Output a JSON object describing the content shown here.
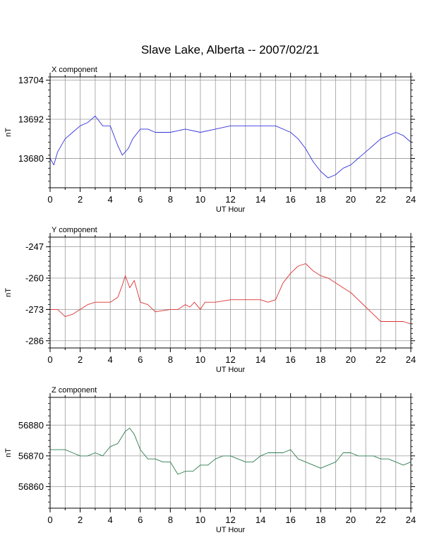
{
  "title": "Slave Lake, Alberta -- 2007/02/21",
  "chart_data": [
    {
      "type": "line",
      "panel_label": "X component",
      "xlabel": "UT Hour",
      "ylabel": "nT",
      "xlim": [
        0,
        24
      ],
      "ylim": [
        13671,
        13705
      ],
      "xticks": [
        0,
        2,
        4,
        6,
        8,
        10,
        12,
        14,
        16,
        18,
        20,
        22,
        24
      ],
      "yticks": [
        13668,
        13680,
        13692,
        13704
      ],
      "grid": true,
      "color": "#3333dd",
      "x": [
        0,
        0.25,
        0.5,
        1,
        1.5,
        2,
        2.5,
        3,
        3.5,
        4,
        4.5,
        4.8,
        5.2,
        5.5,
        6,
        6.5,
        7,
        8,
        9,
        10,
        11,
        12,
        13,
        14,
        15,
        16,
        16.5,
        17,
        17.5,
        18,
        18.5,
        19,
        19.5,
        20,
        20.5,
        21,
        21.5,
        22,
        22.5,
        23,
        23.5,
        24
      ],
      "y": [
        13680,
        13678,
        13682,
        13686,
        13688,
        13690,
        13691,
        13693,
        13690,
        13690,
        13684,
        13681,
        13683,
        13686,
        13689,
        13689,
        13688,
        13688,
        13689,
        13688,
        13689,
        13690,
        13690,
        13690,
        13690,
        13688,
        13686,
        13683,
        13679,
        13676,
        13674,
        13675,
        13677,
        13678,
        13680,
        13682,
        13684,
        13686,
        13687,
        13688,
        13687,
        13685
      ]
    },
    {
      "type": "line",
      "panel_label": "Y component",
      "xlabel": "UT Hour",
      "ylabel": "nT",
      "xlim": [
        0,
        24
      ],
      "ylim": [
        -289,
        -243
      ],
      "xticks": [
        0,
        2,
        4,
        6,
        8,
        10,
        12,
        14,
        16,
        18,
        20,
        22,
        24
      ],
      "yticks": [
        -247,
        -260,
        -273,
        -286
      ],
      "grid": true,
      "color": "#dd3333",
      "x": [
        0,
        0.5,
        1,
        1.5,
        2,
        2.5,
        3,
        3.5,
        4,
        4.5,
        4.8,
        5,
        5.3,
        5.6,
        6,
        6.5,
        7,
        8,
        8.5,
        9,
        9.3,
        9.6,
        10,
        10.3,
        11,
        12,
        13,
        14,
        14.5,
        15,
        15.5,
        16,
        16.5,
        17,
        17.5,
        18,
        18.5,
        19,
        19.5,
        20,
        20.5,
        21,
        21.5,
        22,
        22.5,
        23,
        23.5,
        24
      ],
      "y": [
        -273,
        -273,
        -276,
        -275,
        -273,
        -271,
        -270,
        -270,
        -270,
        -268,
        -263,
        -259,
        -264,
        -261,
        -270,
        -271,
        -274,
        -273,
        -273,
        -271,
        -272,
        -270,
        -273,
        -270,
        -270,
        -269,
        -269,
        -269,
        -270,
        -269,
        -262,
        -258,
        -255,
        -254,
        -257,
        -259,
        -260,
        -262,
        -264,
        -266,
        -269,
        -272,
        -275,
        -278,
        -278,
        -278,
        -278,
        -279
      ]
    },
    {
      "type": "line",
      "panel_label": "Z component",
      "xlabel": "UT Hour",
      "ylabel": "nT",
      "xlim": [
        0,
        24
      ],
      "ylim": [
        56853,
        56889
      ],
      "xticks": [
        0,
        2,
        4,
        6,
        8,
        10,
        12,
        14,
        16,
        18,
        20,
        22,
        24
      ],
      "yticks": [
        56860,
        56870,
        56880
      ],
      "grid": true,
      "color": "#2e7d4f",
      "x": [
        0,
        0.5,
        1,
        1.5,
        2,
        2.5,
        3,
        3.5,
        4,
        4.5,
        5,
        5.3,
        5.6,
        6,
        6.5,
        7,
        7.5,
        8,
        8.5,
        9,
        9.5,
        10,
        10.5,
        11,
        11.5,
        12,
        12.5,
        13,
        13.5,
        14,
        14.5,
        15,
        15.5,
        16,
        16.5,
        17,
        17.5,
        18,
        18.5,
        19,
        19.5,
        20,
        20.5,
        21,
        21.5,
        22,
        22.5,
        23,
        23.5,
        24
      ],
      "y": [
        56872,
        56872,
        56872,
        56871,
        56870,
        56870,
        56871,
        56870,
        56873,
        56874,
        56878,
        56879,
        56877,
        56872,
        56869,
        56869,
        56868,
        56868,
        56864,
        56865,
        56865,
        56867,
        56867,
        56869,
        56870,
        56870,
        56869,
        56868,
        56868,
        56870,
        56871,
        56871,
        56871,
        56872,
        56869,
        56868,
        56867,
        56866,
        56867,
        56868,
        56871,
        56871,
        56870,
        56870,
        56870,
        56869,
        56869,
        56868,
        56867,
        56868
      ]
    }
  ]
}
